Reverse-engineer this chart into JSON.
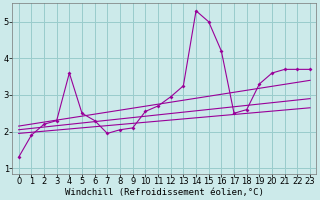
{
  "xlabel": "Windchill (Refroidissement éolien,°C)",
  "bg_color": "#cceaea",
  "grid_color": "#99cccc",
  "line_color": "#990099",
  "xlim": [
    -0.5,
    23.5
  ],
  "ylim": [
    0.85,
    5.5
  ],
  "xticks": [
    0,
    1,
    2,
    3,
    4,
    5,
    6,
    7,
    8,
    9,
    10,
    11,
    12,
    13,
    14,
    15,
    16,
    17,
    18,
    19,
    20,
    21,
    22,
    23
  ],
  "yticks": [
    1,
    2,
    3,
    4,
    5
  ],
  "series1_x": [
    0,
    1,
    2,
    3,
    4,
    5,
    6,
    7,
    8,
    9,
    10,
    11,
    12,
    13,
    14,
    15,
    16,
    17,
    18,
    19,
    20,
    21,
    22,
    23
  ],
  "series1_y": [
    1.3,
    1.9,
    2.2,
    2.3,
    3.6,
    2.5,
    2.3,
    1.95,
    2.05,
    2.1,
    2.55,
    2.7,
    2.95,
    3.25,
    5.3,
    5.0,
    4.2,
    2.5,
    2.6,
    3.3,
    3.6,
    3.7,
    3.7,
    3.7
  ],
  "trend_lines": [
    {
      "x0": 0,
      "x1": 23,
      "y0": 1.95,
      "y1": 2.65
    },
    {
      "x0": 0,
      "x1": 23,
      "y0": 2.05,
      "y1": 2.9
    },
    {
      "x0": 0,
      "x1": 23,
      "y0": 2.15,
      "y1": 3.4
    }
  ],
  "font_size_xlabel": 6.5,
  "font_size_tick": 6.0
}
